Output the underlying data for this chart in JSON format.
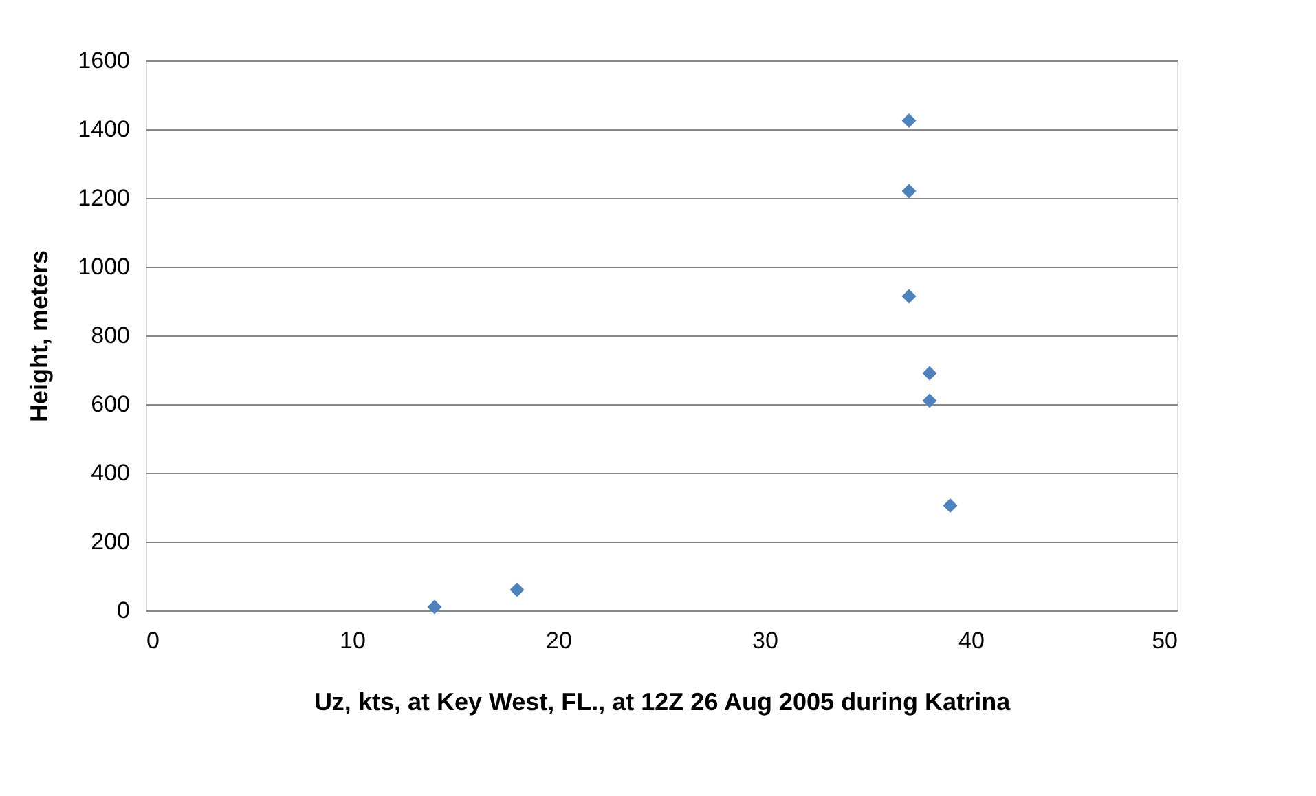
{
  "chart_data": {
    "type": "scatter",
    "xlabel": "Uz, kts, at Key West, FL., at 12Z 26 Aug 2005 during Katrina",
    "ylabel": "Height, meters",
    "x": [
      14,
      18,
      39,
      38,
      38,
      37,
      37,
      37
    ],
    "series": [
      {
        "color": "#4f81bd",
        "values": [
          10,
          60,
          305,
          610,
          690,
          914,
          1220,
          1425
        ]
      }
    ],
    "xlim": [
      0,
      50
    ],
    "xticks": [
      0,
      10,
      20,
      30,
      40,
      50
    ],
    "ylim": [
      0,
      1600
    ],
    "yticks": [
      0,
      200,
      400,
      600,
      800,
      1000,
      1200,
      1400,
      1600
    ],
    "grid": "y",
    "marker": "diamond"
  }
}
